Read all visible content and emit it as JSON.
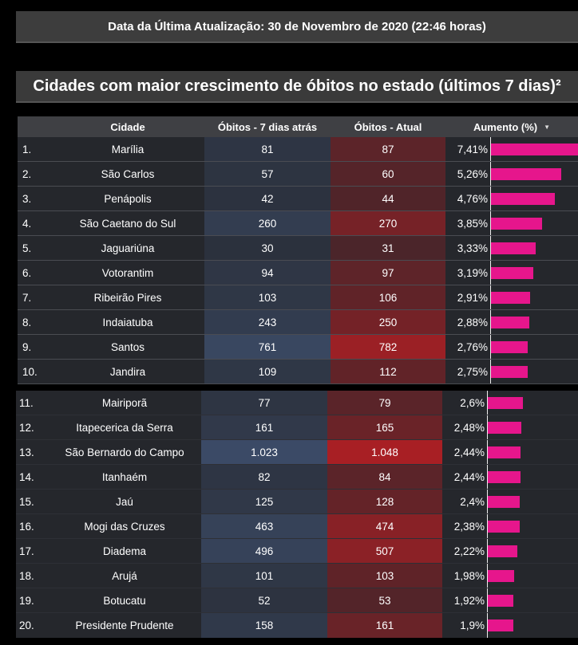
{
  "header": {
    "last_update": "Data da Última Atualização: 30 de Novembro de 2020 (22:46 horas)",
    "title": "Cidades com maior crescimento de óbitos no estado (últimos 7 dias)²"
  },
  "table": {
    "columns": {
      "city": "Cidade",
      "before": "Óbitos - 7 dias atrás",
      "now": "Óbitos - Atual",
      "increase": "Aumento (%)"
    },
    "colors": {
      "bar": "#e6168c",
      "before_scale": "#3b4a66",
      "now_scale": "#a81f24"
    },
    "rows_top": [
      {
        "rank": "1.",
        "city": "Marília",
        "before": "81",
        "now": "87",
        "pct": "7,41%",
        "v": 7.41
      },
      {
        "rank": "2.",
        "city": "São Carlos",
        "before": "57",
        "now": "60",
        "pct": "5,26%",
        "v": 5.26
      },
      {
        "rank": "3.",
        "city": "Penápolis",
        "before": "42",
        "now": "44",
        "pct": "4,76%",
        "v": 4.76
      },
      {
        "rank": "4.",
        "city": "São Caetano do Sul",
        "before": "260",
        "now": "270",
        "pct": "3,85%",
        "v": 3.85
      },
      {
        "rank": "5.",
        "city": "Jaguariúna",
        "before": "30",
        "now": "31",
        "pct": "3,33%",
        "v": 3.33
      },
      {
        "rank": "6.",
        "city": "Votorantim",
        "before": "94",
        "now": "97",
        "pct": "3,19%",
        "v": 3.19
      },
      {
        "rank": "7.",
        "city": "Ribeirão Pires",
        "before": "103",
        "now": "106",
        "pct": "2,91%",
        "v": 2.91
      },
      {
        "rank": "8.",
        "city": "Indaiatuba",
        "before": "243",
        "now": "250",
        "pct": "2,88%",
        "v": 2.88
      },
      {
        "rank": "9.",
        "city": "Santos",
        "before": "761",
        "now": "782",
        "pct": "2,76%",
        "v": 2.76
      },
      {
        "rank": "10.",
        "city": "Jandira",
        "before": "109",
        "now": "112",
        "pct": "2,75%",
        "v": 2.75
      }
    ],
    "rows_bottom": [
      {
        "rank": "11.",
        "city": "Mairiporã",
        "before": "77",
        "now": "79",
        "pct": "2,6%",
        "v": 2.6
      },
      {
        "rank": "12.",
        "city": "Itapecerica da Serra",
        "before": "161",
        "now": "165",
        "pct": "2,48%",
        "v": 2.48
      },
      {
        "rank": "13.",
        "city": "São Bernardo do Campo",
        "before": "1.023",
        "now": "1.048",
        "pct": "2,44%",
        "v": 2.44
      },
      {
        "rank": "14.",
        "city": "Itanhaém",
        "before": "82",
        "now": "84",
        "pct": "2,44%",
        "v": 2.44
      },
      {
        "rank": "15.",
        "city": "Jaú",
        "before": "125",
        "now": "128",
        "pct": "2,4%",
        "v": 2.4
      },
      {
        "rank": "16.",
        "city": "Mogi das Cruzes",
        "before": "463",
        "now": "474",
        "pct": "2,38%",
        "v": 2.38
      },
      {
        "rank": "17.",
        "city": "Diadema",
        "before": "496",
        "now": "507",
        "pct": "2,22%",
        "v": 2.22
      },
      {
        "rank": "18.",
        "city": "Arujá",
        "before": "101",
        "now": "103",
        "pct": "1,98%",
        "v": 1.98
      },
      {
        "rank": "19.",
        "city": "Botucatu",
        "before": "52",
        "now": "53",
        "pct": "1,92%",
        "v": 1.92
      },
      {
        "rank": "20.",
        "city": "Presidente Prudente",
        "before": "158",
        "now": "161",
        "pct": "1,9%",
        "v": 1.9
      }
    ]
  }
}
